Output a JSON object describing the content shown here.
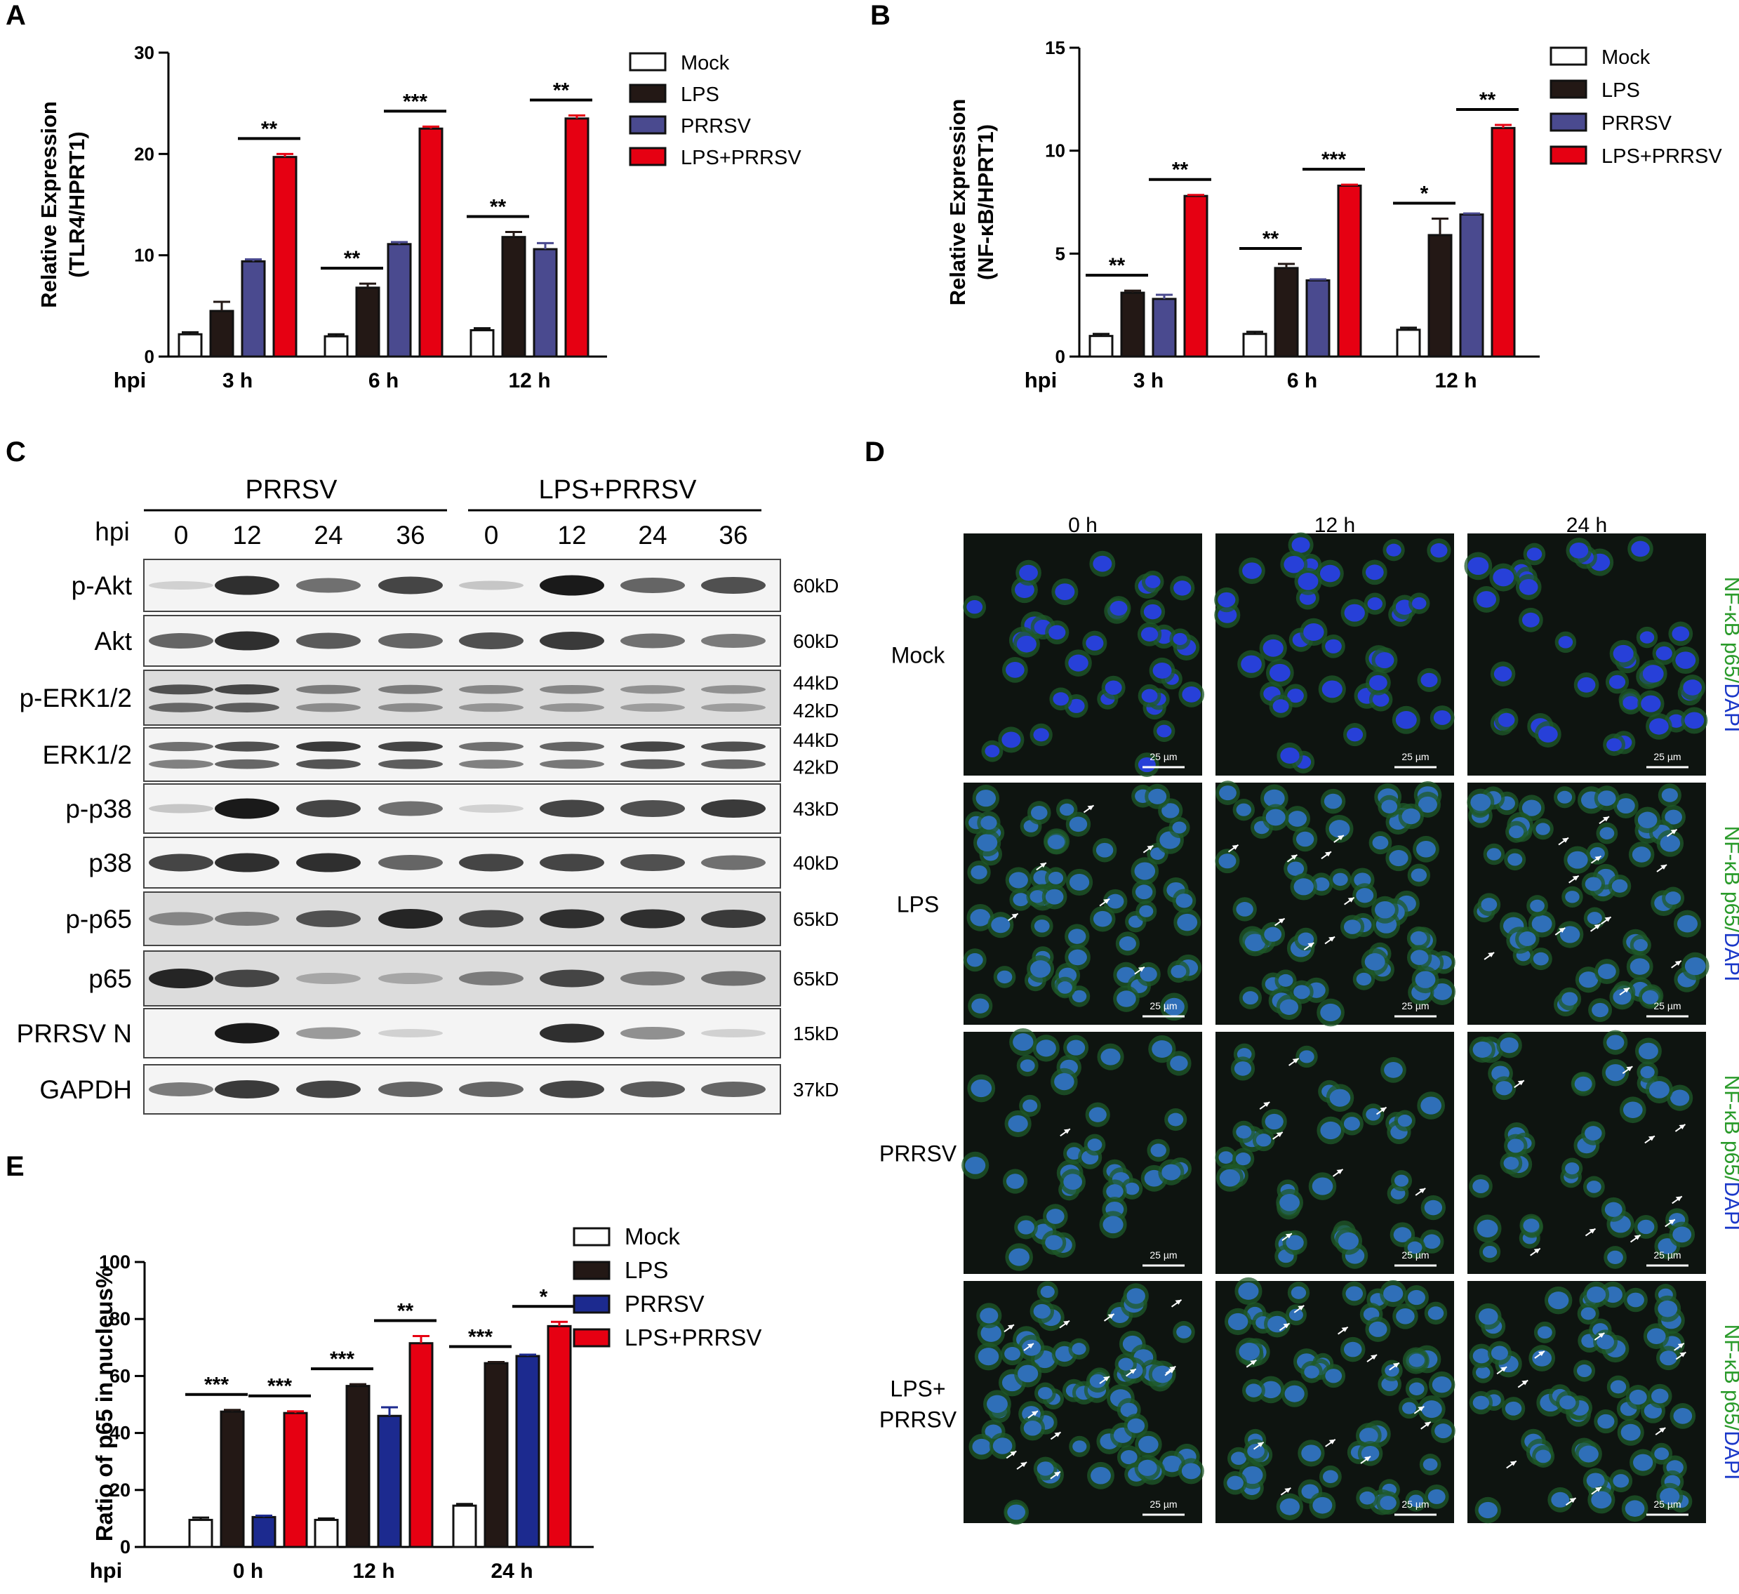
{
  "panels": {
    "A": "A",
    "B": "B",
    "C": "C",
    "D": "D",
    "E": "E"
  },
  "colors": {
    "mock": "#ffffff",
    "lps": "#231815",
    "prrsv_ab": "#4a4a8f",
    "prrsv_e": "#1c2a8f",
    "lps_prrsv": "#e60012",
    "dapi": "#1a37c8",
    "p65": "#2a9a2a"
  },
  "legend": [
    "Mock",
    "LPS",
    "PRRSV",
    "LPS+PRRSV"
  ],
  "chart_data": [
    {
      "id": "A",
      "type": "bar",
      "ylabel_line1": "Relative Expression",
      "ylabel_line2": "(TLR4/HPRT1)",
      "xprefix": "hpi",
      "categories": [
        "3 h",
        "6 h",
        "12 h"
      ],
      "ylim": [
        0,
        30
      ],
      "yticks": [
        0,
        10,
        20,
        30
      ],
      "series": [
        {
          "name": "Mock",
          "values": [
            2.2,
            2.0,
            2.6
          ],
          "errors": [
            0.2,
            0.2,
            0.2
          ]
        },
        {
          "name": "LPS",
          "values": [
            4.5,
            6.8,
            11.8
          ],
          "errors": [
            0.9,
            0.4,
            0.5
          ]
        },
        {
          "name": "PRRSV",
          "values": [
            9.4,
            11.1,
            10.6
          ],
          "errors": [
            0.2,
            0.2,
            0.6
          ]
        },
        {
          "name": "LPS+PRRSV",
          "values": [
            19.7,
            22.5,
            23.5
          ],
          "errors": [
            0.3,
            0.2,
            0.3
          ]
        }
      ],
      "annotations": [
        {
          "group": 0,
          "pair": [
            2,
            3
          ],
          "text": "**"
        },
        {
          "group": 1,
          "pair": [
            0,
            1
          ],
          "text": "**"
        },
        {
          "group": 1,
          "pair": [
            2,
            3
          ],
          "text": "***"
        },
        {
          "group": 2,
          "pair": [
            0,
            1
          ],
          "text": "**"
        },
        {
          "group": 2,
          "pair": [
            2,
            3
          ],
          "text": "**"
        }
      ]
    },
    {
      "id": "B",
      "type": "bar",
      "ylabel_line1": "Relative Expression",
      "ylabel_line2": "(NF-κB/HPRT1)",
      "xprefix": "hpi",
      "categories": [
        "3 h",
        "6 h",
        "12 h"
      ],
      "ylim": [
        0,
        15
      ],
      "yticks": [
        0,
        5,
        10,
        15
      ],
      "series": [
        {
          "name": "Mock",
          "values": [
            1.0,
            1.1,
            1.3
          ],
          "errors": [
            0.1,
            0.1,
            0.1
          ]
        },
        {
          "name": "LPS",
          "values": [
            3.1,
            4.3,
            5.9
          ],
          "errors": [
            0.1,
            0.2,
            0.8
          ]
        },
        {
          "name": "PRRSV",
          "values": [
            2.8,
            3.7,
            6.9
          ],
          "errors": [
            0.2,
            0.05,
            0.05
          ]
        },
        {
          "name": "LPS+PRRSV",
          "values": [
            7.8,
            8.3,
            11.1
          ],
          "errors": [
            0.05,
            0.05,
            0.15
          ]
        }
      ],
      "annotations": [
        {
          "group": 0,
          "pair": [
            0,
            1
          ],
          "text": "**"
        },
        {
          "group": 0,
          "pair": [
            2,
            3
          ],
          "text": "**"
        },
        {
          "group": 1,
          "pair": [
            0,
            1
          ],
          "text": "**"
        },
        {
          "group": 1,
          "pair": [
            2,
            3
          ],
          "text": "***"
        },
        {
          "group": 2,
          "pair": [
            0,
            1
          ],
          "text": "*"
        },
        {
          "group": 2,
          "pair": [
            2,
            3
          ],
          "text": "**"
        }
      ]
    },
    {
      "id": "E",
      "type": "bar",
      "ylabel_line1": "Ratio of p65 in nucleus%",
      "ylabel_line2": "",
      "xprefix": "hpi",
      "categories": [
        "0 h",
        "12 h",
        "24 h"
      ],
      "ylim": [
        0,
        100
      ],
      "yticks": [
        0,
        20,
        40,
        60,
        80,
        100
      ],
      "series": [
        {
          "name": "Mock",
          "values": [
            9.5,
            9.5,
            14.5
          ],
          "errors": [
            0.8,
            0.5,
            0.6
          ]
        },
        {
          "name": "LPS",
          "values": [
            47.5,
            56.5,
            64.5
          ],
          "errors": [
            0.6,
            0.6,
            0.4
          ]
        },
        {
          "name": "PRRSV",
          "values": [
            10.5,
            46.0,
            67.0
          ],
          "errors": [
            0.5,
            3.0,
            0.5
          ]
        },
        {
          "name": "LPS+PRRSV",
          "values": [
            47.0,
            71.5,
            77.5
          ],
          "errors": [
            0.6,
            2.5,
            1.5
          ]
        }
      ],
      "annotations": [
        {
          "group": 0,
          "pair": [
            0,
            1
          ],
          "text": "***"
        },
        {
          "group": 0,
          "pair": [
            2,
            3
          ],
          "text": "***"
        },
        {
          "group": 1,
          "pair": [
            0,
            1
          ],
          "text": "***"
        },
        {
          "group": 1,
          "pair": [
            2,
            3
          ],
          "text": "**"
        },
        {
          "group": 2,
          "pair": [
            0,
            1
          ],
          "text": "***"
        },
        {
          "group": 2,
          "pair": [
            2,
            3
          ],
          "text": "*"
        }
      ]
    }
  ],
  "blot": {
    "groups": [
      "PRRSV",
      "LPS+PRRSV"
    ],
    "hpi_label": "hpi",
    "timepoints": [
      "0",
      "12",
      "24",
      "36",
      "0",
      "12",
      "24",
      "36"
    ],
    "rows": [
      {
        "label": "p-Akt",
        "sizes": [
          "60kD"
        ],
        "intensity": [
          0.1,
          0.85,
          0.55,
          0.75,
          0.15,
          0.95,
          0.6,
          0.7
        ],
        "double": false
      },
      {
        "label": "Akt",
        "sizes": [
          "60kD"
        ],
        "intensity": [
          0.6,
          0.85,
          0.65,
          0.6,
          0.7,
          0.8,
          0.55,
          0.5
        ],
        "double": false
      },
      {
        "label": "p-ERK1/2",
        "sizes": [
          "44kD",
          "42kD"
        ],
        "intensity": [
          0.7,
          0.75,
          0.5,
          0.5,
          0.45,
          0.45,
          0.4,
          0.4
        ],
        "double": true
      },
      {
        "label": "ERK1/2",
        "sizes": [
          "44kD",
          "42kD"
        ],
        "intensity": [
          0.55,
          0.7,
          0.8,
          0.75,
          0.55,
          0.6,
          0.75,
          0.7
        ],
        "double": true
      },
      {
        "label": "p-p38",
        "sizes": [
          "43kD"
        ],
        "intensity": [
          0.15,
          0.95,
          0.75,
          0.55,
          0.1,
          0.75,
          0.7,
          0.8
        ],
        "double": false
      },
      {
        "label": "p38",
        "sizes": [
          "40kD"
        ],
        "intensity": [
          0.75,
          0.85,
          0.85,
          0.6,
          0.75,
          0.75,
          0.7,
          0.55
        ],
        "double": false
      },
      {
        "label": "p-p65",
        "sizes": [
          "65kD"
        ],
        "intensity": [
          0.45,
          0.5,
          0.7,
          0.9,
          0.75,
          0.85,
          0.85,
          0.8
        ],
        "double": false
      },
      {
        "label": "p65",
        "sizes": [
          "65kD"
        ],
        "intensity": [
          0.9,
          0.75,
          0.3,
          0.3,
          0.5,
          0.75,
          0.5,
          0.55
        ],
        "double": false
      },
      {
        "label": "PRRSV N",
        "sizes": [
          "15kD"
        ],
        "intensity": [
          0.0,
          0.95,
          0.35,
          0.1,
          0.0,
          0.85,
          0.4,
          0.1
        ],
        "double": false
      },
      {
        "label": "GAPDH",
        "sizes": [
          "37kD"
        ],
        "intensity": [
          0.5,
          0.8,
          0.75,
          0.6,
          0.6,
          0.75,
          0.65,
          0.6
        ],
        "double": false
      }
    ]
  },
  "micrographs": {
    "columns": [
      "0 h",
      "12 h",
      "24 h"
    ],
    "rows": [
      {
        "label": [
          "Mock"
        ],
        "arrows": [
          0,
          0,
          0
        ]
      },
      {
        "label": [
          "LPS"
        ],
        "arrows": [
          6,
          8,
          12
        ]
      },
      {
        "label": [
          "PRRSV"
        ],
        "arrows": [
          1,
          7,
          9
        ]
      },
      {
        "label": [
          "LPS+",
          "PRRSV"
        ],
        "arrows": [
          14,
          12,
          10
        ]
      }
    ],
    "scale_bar": "25 µm",
    "side_label_green": "NF-κB p65/",
    "side_label_blue": "DAPI"
  }
}
